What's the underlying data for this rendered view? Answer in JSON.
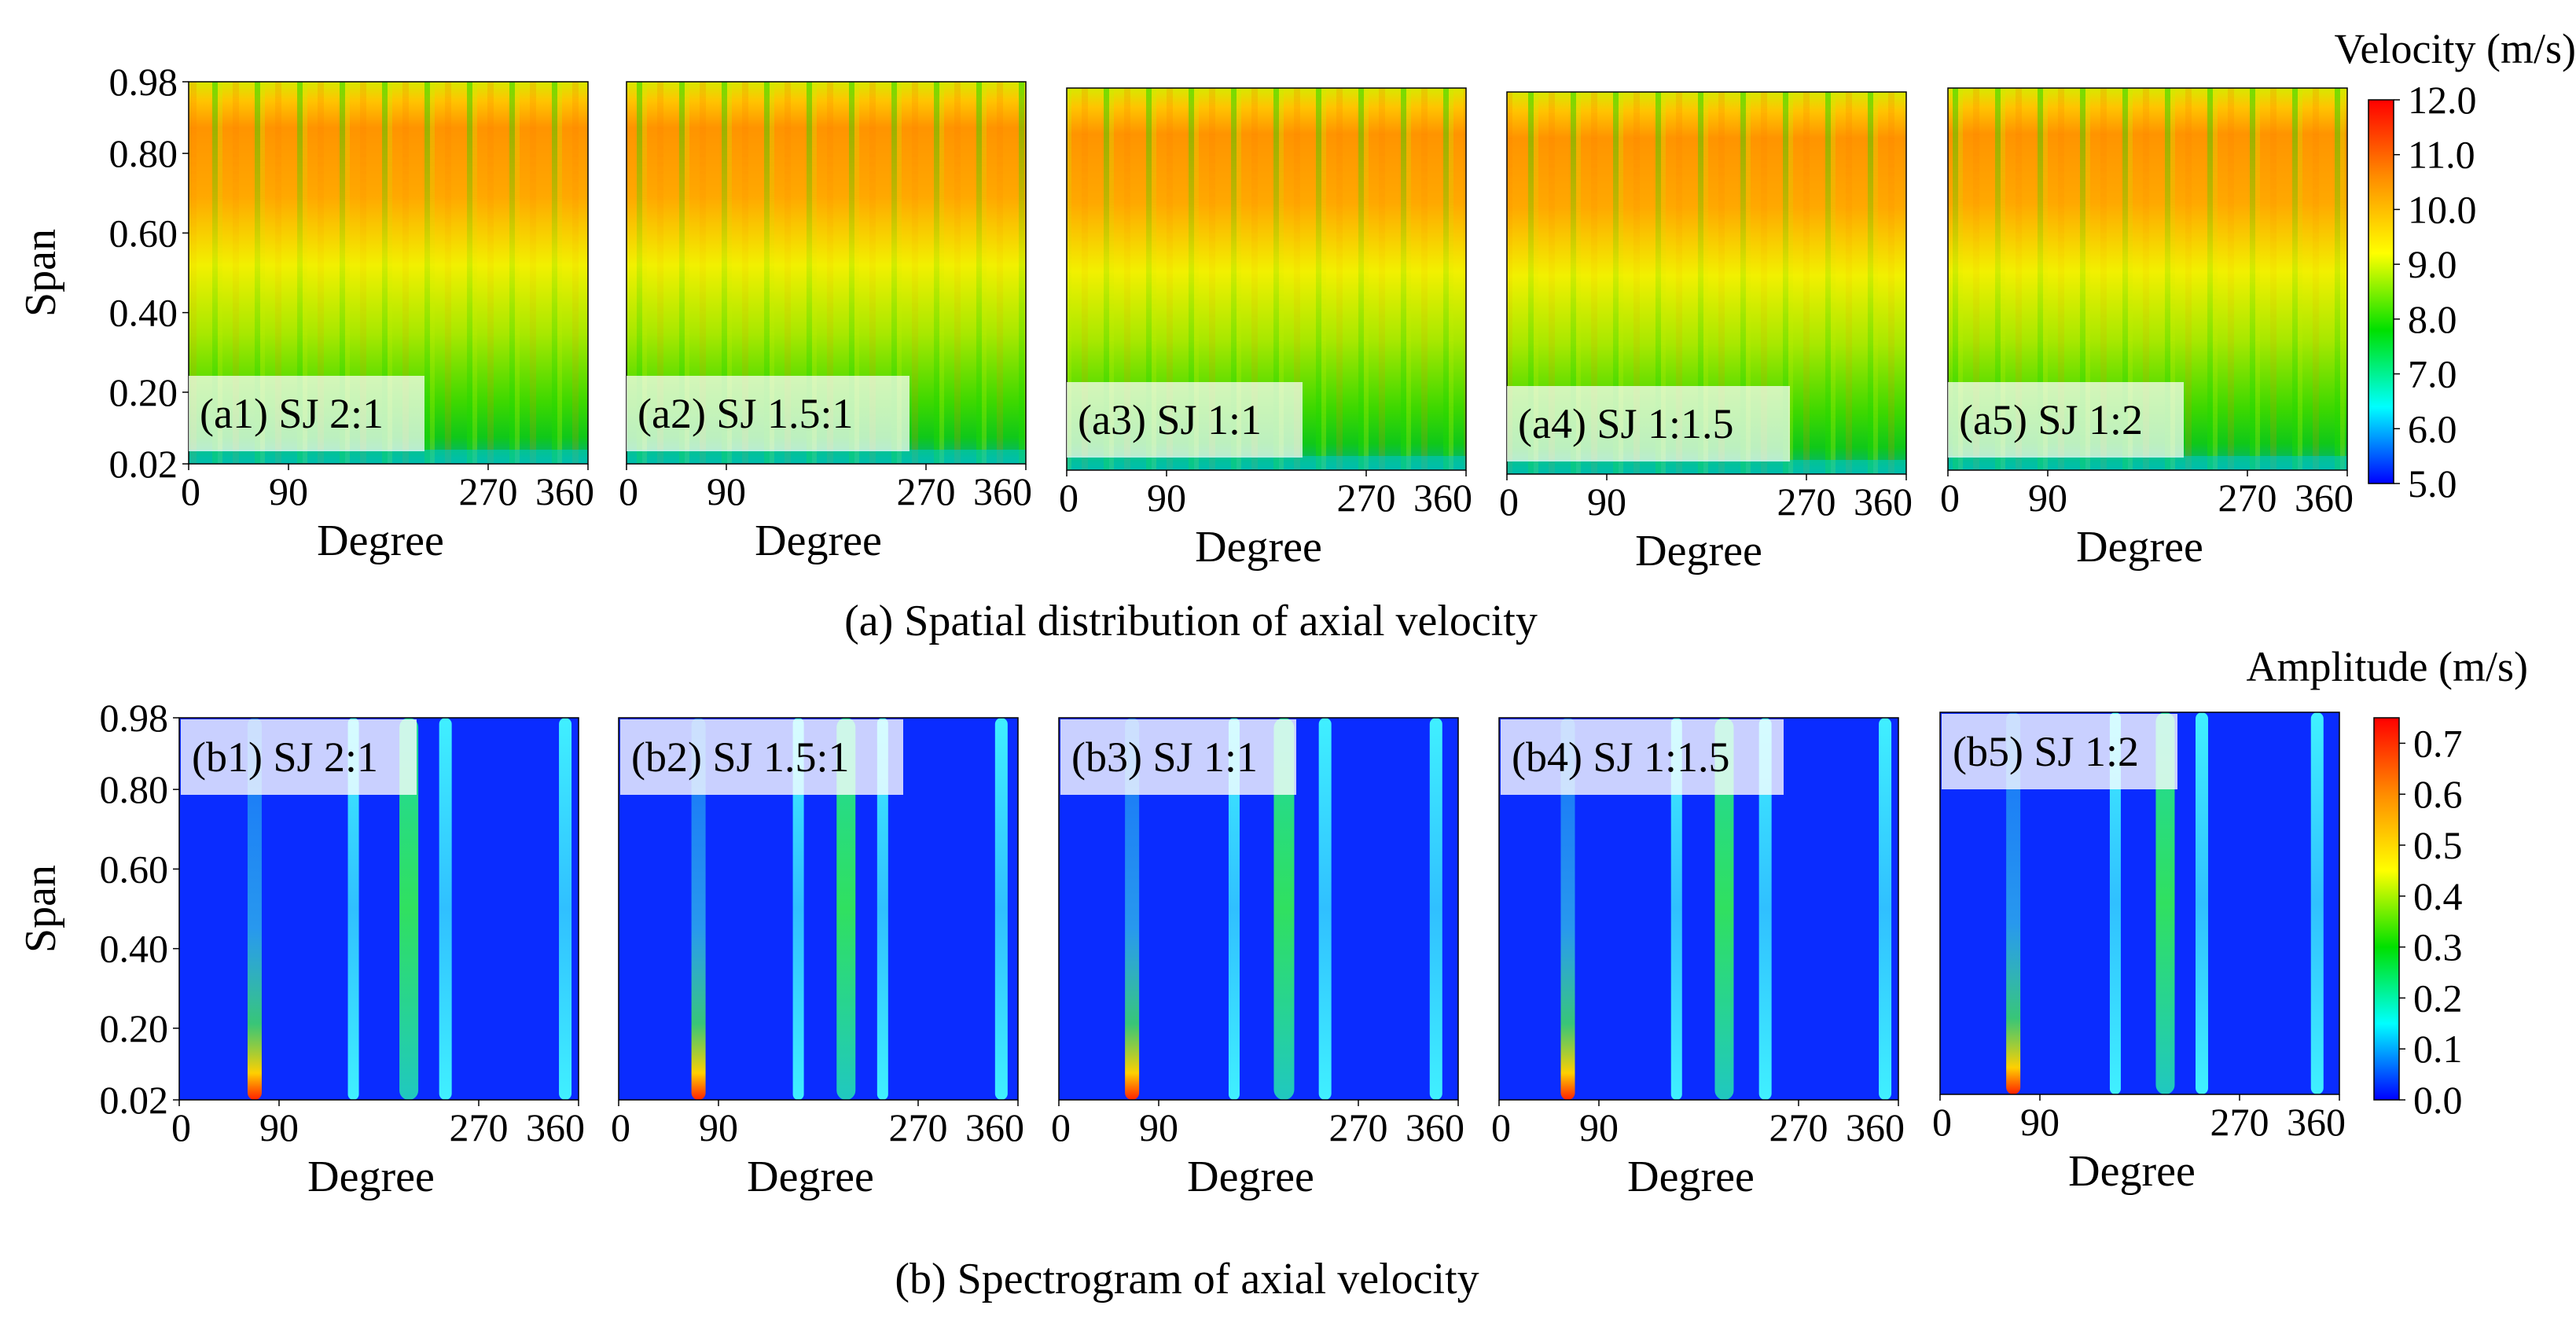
{
  "chart_data": [
    {
      "type": "heatmap",
      "caption": "(a) Spatial distribution of axial velocity",
      "xlabel": "Degree",
      "ylabel": "Span",
      "xticks": [
        "0",
        "90",
        "270",
        "360"
      ],
      "yticks": [
        "0.98",
        "0.80",
        "0.60",
        "0.40",
        "0.20",
        "0.02"
      ],
      "xlim": [
        0,
        360
      ],
      "ylim": [
        0.02,
        0.98
      ],
      "colorbar": {
        "title": "Velocity (m/s)",
        "ticks": [
          "12.0",
          "11.0",
          "10.0",
          "9.0",
          "8.0",
          "7.0",
          "6.0",
          "5.0"
        ],
        "range": [
          5.0,
          12.0
        ],
        "colors": [
          "#0000ff",
          "#00ffff",
          "#00e000",
          "#ffff00",
          "#ff8c00",
          "#ff0000"
        ]
      },
      "panels": [
        {
          "label": "(a1) SJ 2:1"
        },
        {
          "label": "(a2) SJ 1.5:1"
        },
        {
          "label": "(a3) SJ 1:1"
        },
        {
          "label": "(a4) SJ 1:1.5"
        },
        {
          "label": "(a5) SJ 1:2"
        }
      ]
    },
    {
      "type": "heatmap",
      "caption": "(b) Spectrogram of axial velocity",
      "xlabel": "Degree",
      "ylabel": "Span",
      "xticks": [
        "0",
        "90",
        "270",
        "360"
      ],
      "yticks": [
        "0.98",
        "0.80",
        "0.60",
        "0.40",
        "0.20",
        "0.02"
      ],
      "xlim": [
        0,
        360
      ],
      "ylim": [
        0.02,
        0.98
      ],
      "colorbar": {
        "title": "Amplitude (m/s)",
        "ticks": [
          "0.7",
          "0.6",
          "0.5",
          "0.4",
          "0.3",
          "0.2",
          "0.1",
          "0.0"
        ],
        "range": [
          0.0,
          0.75
        ],
        "colors": [
          "#0000ff",
          "#00ffff",
          "#00e000",
          "#ffff00",
          "#ff8c00",
          "#ff0000"
        ]
      },
      "panels": [
        {
          "label": "(b1) SJ 2:1"
        },
        {
          "label": "(b2) SJ 1.5:1"
        },
        {
          "label": "(b3) SJ 1:1"
        },
        {
          "label": "(b4) SJ 1:1.5"
        },
        {
          "label": "(b5) SJ 1:2"
        }
      ]
    }
  ]
}
